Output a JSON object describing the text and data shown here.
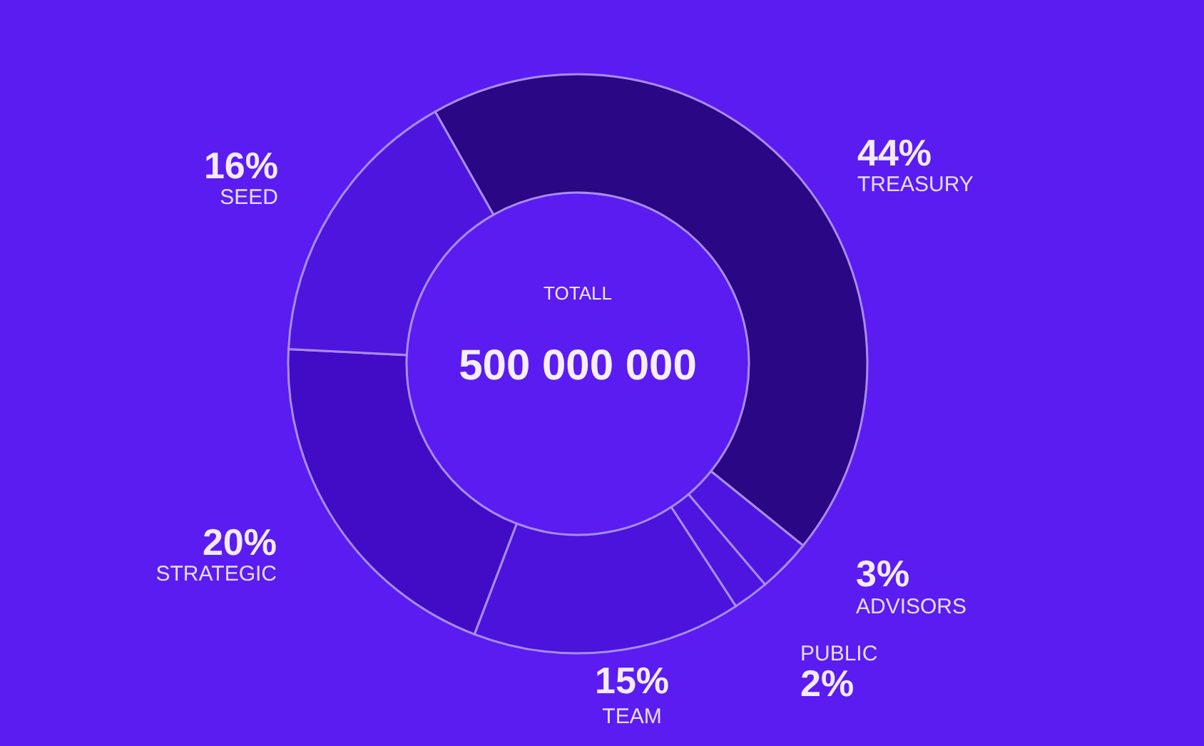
{
  "chart_data": {
    "type": "donut",
    "categories": [
      "TREASURY",
      "ADVISORS",
      "PUBLIC",
      "TEAM",
      "STRATEGIC",
      "SEED"
    ],
    "values": [
      44,
      3,
      2,
      15,
      20,
      16
    ],
    "colors": [
      "#2a0784",
      "#4e15e0",
      "#4e15e0",
      "#4c13dc",
      "#420cc6",
      "#4e15df"
    ],
    "value_labels": [
      "44%",
      "3%",
      "2%",
      "15%",
      "20%",
      "16%"
    ],
    "annotations": [
      "TOTALL",
      "500 000 000"
    ]
  }
}
